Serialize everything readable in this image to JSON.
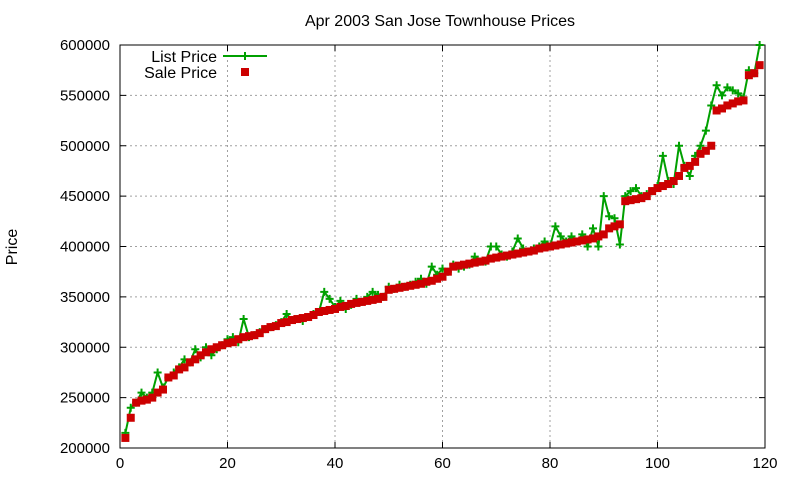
{
  "chart_data": {
    "type": "line",
    "title": "Apr 2003 San Jose Townhouse Prices",
    "xlabel": "",
    "ylabel": "Price",
    "xlim": [
      0,
      120
    ],
    "ylim": [
      200000,
      600000
    ],
    "x_ticks": [
      0,
      20,
      40,
      60,
      80,
      100,
      120
    ],
    "y_ticks": [
      200000,
      250000,
      300000,
      350000,
      400000,
      450000,
      500000,
      550000,
      600000
    ],
    "x_tick_labels": [
      "0",
      "20",
      "40",
      "60",
      "80",
      "100",
      "120"
    ],
    "y_tick_labels": [
      "200000",
      "250000",
      "300000",
      "350000",
      "400000",
      "450000",
      "500000",
      "550000",
      "600000"
    ],
    "grid": true,
    "legend_position": "top-left",
    "series": [
      {
        "name": "List Price",
        "color": "#00a000",
        "style": "linespoints",
        "marker": "plus",
        "x": [
          1,
          2,
          3,
          4,
          5,
          6,
          7,
          8,
          9,
          10,
          11,
          12,
          13,
          14,
          15,
          16,
          17,
          18,
          19,
          20,
          21,
          22,
          23,
          24,
          25,
          26,
          27,
          28,
          29,
          30,
          31,
          32,
          33,
          34,
          35,
          36,
          37,
          38,
          39,
          40,
          41,
          42,
          43,
          44,
          45,
          46,
          47,
          48,
          49,
          50,
          51,
          52,
          53,
          54,
          55,
          56,
          57,
          58,
          59,
          60,
          61,
          62,
          63,
          64,
          65,
          66,
          67,
          68,
          69,
          70,
          71,
          72,
          73,
          74,
          75,
          76,
          77,
          78,
          79,
          80,
          81,
          82,
          83,
          84,
          85,
          86,
          87,
          88,
          89,
          90,
          91,
          92,
          93,
          94,
          95,
          96,
          97,
          98,
          99,
          100,
          101,
          102,
          103,
          104,
          105,
          106,
          107,
          108,
          109,
          110,
          111,
          112,
          113,
          114,
          115,
          116,
          117,
          118,
          119
        ],
        "values": [
          215000,
          240000,
          245000,
          255000,
          250000,
          255000,
          275000,
          260000,
          270000,
          275000,
          280000,
          288000,
          285000,
          298000,
          290000,
          300000,
          292000,
          298000,
          302000,
          308000,
          310000,
          305000,
          328000,
          310000,
          312000,
          315000,
          318000,
          320000,
          322000,
          325000,
          333000,
          327000,
          328000,
          326000,
          330000,
          333000,
          335000,
          355000,
          348000,
          340000,
          346000,
          338000,
          342000,
          348000,
          345000,
          350000,
          355000,
          352000,
          350000,
          360000,
          358000,
          362000,
          360000,
          362000,
          365000,
          368000,
          363000,
          380000,
          372000,
          378000,
          375000,
          382000,
          378000,
          380000,
          382000,
          390000,
          385000,
          385000,
          400000,
          400000,
          392000,
          390000,
          395000,
          408000,
          398000,
          395000,
          398000,
          400000,
          405000,
          400000,
          420000,
          410000,
          405000,
          410000,
          405000,
          412000,
          400000,
          418000,
          400000,
          450000,
          430000,
          428000,
          402000,
          450000,
          455000,
          458000,
          450000,
          452000,
          455000,
          460000,
          490000,
          465000,
          462000,
          500000,
          480000,
          470000,
          490000,
          500000,
          515000,
          540000,
          560000,
          550000,
          558000,
          555000,
          552000,
          548000,
          575000,
          572000,
          600000
        ]
      },
      {
        "name": "Sale Price",
        "color": "#cc0000",
        "style": "points",
        "marker": "square",
        "x": [
          1,
          2,
          3,
          4,
          5,
          6,
          7,
          8,
          9,
          10,
          11,
          12,
          13,
          14,
          15,
          16,
          17,
          18,
          19,
          20,
          21,
          22,
          23,
          24,
          25,
          26,
          27,
          28,
          29,
          30,
          31,
          32,
          33,
          34,
          35,
          36,
          37,
          38,
          39,
          40,
          41,
          42,
          43,
          44,
          45,
          46,
          47,
          48,
          49,
          50,
          51,
          52,
          53,
          54,
          55,
          56,
          57,
          58,
          59,
          60,
          61,
          62,
          63,
          64,
          65,
          66,
          67,
          68,
          69,
          70,
          71,
          72,
          73,
          74,
          75,
          76,
          77,
          78,
          79,
          80,
          81,
          82,
          83,
          84,
          85,
          86,
          87,
          88,
          89,
          90,
          91,
          92,
          93,
          94,
          95,
          96,
          97,
          98,
          99,
          100,
          101,
          102,
          103,
          104,
          105,
          106,
          107,
          108,
          109,
          110,
          111,
          112,
          113,
          114,
          115,
          116,
          117,
          118,
          119
        ],
        "values": [
          210000,
          230000,
          245000,
          247000,
          248000,
          250000,
          255000,
          258000,
          270000,
          272000,
          278000,
          280000,
          285000,
          288000,
          292000,
          295000,
          298000,
          300000,
          302000,
          304000,
          305000,
          308000,
          310000,
          311000,
          312000,
          314000,
          318000,
          320000,
          321000,
          324000,
          325000,
          327000,
          328000,
          329000,
          330000,
          332000,
          335000,
          336000,
          337000,
          338000,
          340000,
          341000,
          343000,
          344000,
          345000,
          346000,
          347000,
          348000,
          350000,
          357000,
          358000,
          359000,
          360000,
          361000,
          362000,
          363000,
          365000,
          366000,
          368000,
          370000,
          375000,
          380000,
          381000,
          382000,
          383000,
          384000,
          385000,
          386000,
          388000,
          389000,
          390000,
          391000,
          392000,
          393000,
          394000,
          395000,
          396000,
          398000,
          399000,
          400000,
          401000,
          402000,
          403000,
          404000,
          405000,
          406000,
          407000,
          408000,
          410000,
          412000,
          418000,
          420000,
          422000,
          445000,
          446000,
          447000,
          448000,
          450000,
          455000,
          458000,
          460000,
          462000,
          465000,
          470000,
          478000,
          480000,
          484000,
          492000,
          495000,
          500000,
          535000,
          537000,
          540000,
          542000,
          544000,
          545000,
          570000,
          572000,
          580000
        ]
      }
    ]
  }
}
